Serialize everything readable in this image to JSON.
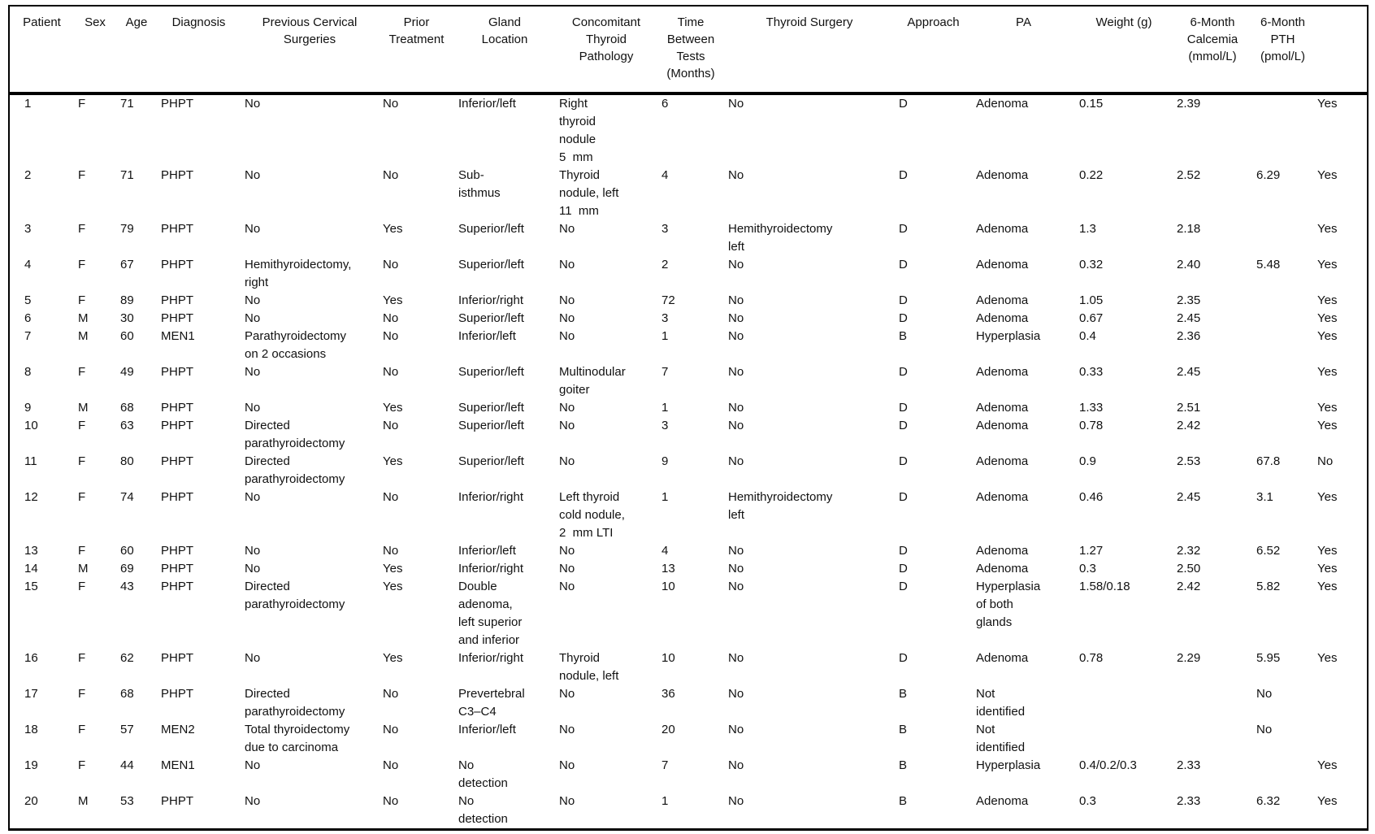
{
  "table": {
    "columns": [
      {
        "key": "patient",
        "label": "Patient"
      },
      {
        "key": "sex",
        "label": "Sex"
      },
      {
        "key": "age",
        "label": "Age"
      },
      {
        "key": "diagnosis",
        "label": "Diagnosis"
      },
      {
        "key": "previous_cervical_surgeries",
        "label": "Previous Cervical\nSurgeries"
      },
      {
        "key": "prior_treatment",
        "label": "Prior\nTreatment"
      },
      {
        "key": "gland_location",
        "label": "Gland\nLocation"
      },
      {
        "key": "concomitant_thyroid_pathology",
        "label": "Concomitant\nThyroid\nPathology"
      },
      {
        "key": "time_between_tests_months",
        "label": "Time\nBetween\nTests\n(Months)"
      },
      {
        "key": "thyroid_surgery",
        "label": "Thyroid Surgery"
      },
      {
        "key": "approach",
        "label": "Approach"
      },
      {
        "key": "pa",
        "label": "PA"
      },
      {
        "key": "weight_g",
        "label": "Weight (g)"
      },
      {
        "key": "calcemia_6month",
        "label": "6-Month\nCalcemia\n(mmol/L)"
      },
      {
        "key": "pth_6month",
        "label": "6-Month\nPTH\n(pmol/L)"
      },
      {
        "key": "last_column",
        "label": ""
      }
    ],
    "rows": [
      {
        "patient": "1",
        "sex": "F",
        "age": "71",
        "diagnosis": "PHPT",
        "previous_cervical_surgeries": "No",
        "prior_treatment": "No",
        "gland_location": "Inferior/left",
        "concomitant_thyroid_pathology": "Right\nthyroid\nnodule\n5  mm",
        "time_between_tests_months": "6",
        "thyroid_surgery": "No",
        "approach": "D",
        "pa": "Adenoma",
        "weight_g": "0.15",
        "calcemia_6month": "2.39",
        "pth_6month": "",
        "last_column": "Yes"
      },
      {
        "patient": "2",
        "sex": "F",
        "age": "71",
        "diagnosis": "PHPT",
        "previous_cervical_surgeries": "No",
        "prior_treatment": "No",
        "gland_location": "Sub-\nisthmus",
        "concomitant_thyroid_pathology": "Thyroid\nnodule, left\n11  mm",
        "time_between_tests_months": "4",
        "thyroid_surgery": "No",
        "approach": "D",
        "pa": "Adenoma",
        "weight_g": "0.22",
        "calcemia_6month": "2.52",
        "pth_6month": "6.29",
        "last_column": "Yes"
      },
      {
        "patient": "3",
        "sex": "F",
        "age": "79",
        "diagnosis": "PHPT",
        "previous_cervical_surgeries": "No",
        "prior_treatment": "Yes",
        "gland_location": "Superior/left",
        "concomitant_thyroid_pathology": "No",
        "time_between_tests_months": "3",
        "thyroid_surgery": "Hemithyroidectomy\nleft",
        "approach": "D",
        "pa": "Adenoma",
        "weight_g": "1.3",
        "calcemia_6month": "2.18",
        "pth_6month": "",
        "last_column": "Yes"
      },
      {
        "patient": "4",
        "sex": "F",
        "age": "67",
        "diagnosis": "PHPT",
        "previous_cervical_surgeries": "Hemithyroidectomy,\nright",
        "prior_treatment": "No",
        "gland_location": "Superior/left",
        "concomitant_thyroid_pathology": "No",
        "time_between_tests_months": "2",
        "thyroid_surgery": "No",
        "approach": "D",
        "pa": "Adenoma",
        "weight_g": "0.32",
        "calcemia_6month": "2.40",
        "pth_6month": "5.48",
        "last_column": "Yes"
      },
      {
        "patient": "5",
        "sex": "F",
        "age": "89",
        "diagnosis": "PHPT",
        "previous_cervical_surgeries": "No",
        "prior_treatment": "Yes",
        "gland_location": "Inferior/right",
        "concomitant_thyroid_pathology": "No",
        "time_between_tests_months": "72",
        "thyroid_surgery": "No",
        "approach": "D",
        "pa": "Adenoma",
        "weight_g": "1.05",
        "calcemia_6month": "2.35",
        "pth_6month": "",
        "last_column": "Yes"
      },
      {
        "patient": "6",
        "sex": "M",
        "age": "30",
        "diagnosis": "PHPT",
        "previous_cervical_surgeries": "No",
        "prior_treatment": "No",
        "gland_location": "Superior/left",
        "concomitant_thyroid_pathology": "No",
        "time_between_tests_months": "3",
        "thyroid_surgery": "No",
        "approach": "D",
        "pa": "Adenoma",
        "weight_g": "0.67",
        "calcemia_6month": "2.45",
        "pth_6month": "",
        "last_column": "Yes"
      },
      {
        "patient": "7",
        "sex": "M",
        "age": "60",
        "diagnosis": "MEN1",
        "previous_cervical_surgeries": "Parathyroidectomy\non 2 occasions",
        "prior_treatment": "No",
        "gland_location": "Inferior/left",
        "concomitant_thyroid_pathology": "No",
        "time_between_tests_months": "1",
        "thyroid_surgery": "No",
        "approach": "B",
        "pa": "Hyperplasia",
        "weight_g": "0.4",
        "calcemia_6month": "2.36",
        "pth_6month": "",
        "last_column": "Yes"
      },
      {
        "patient": "8",
        "sex": "F",
        "age": "49",
        "diagnosis": "PHPT",
        "previous_cervical_surgeries": "No",
        "prior_treatment": "No",
        "gland_location": "Superior/left",
        "concomitant_thyroid_pathology": "Multinodular\ngoiter",
        "time_between_tests_months": "7",
        "thyroid_surgery": "No",
        "approach": "D",
        "pa": "Adenoma",
        "weight_g": "0.33",
        "calcemia_6month": "2.45",
        "pth_6month": "",
        "last_column": "Yes"
      },
      {
        "patient": "9",
        "sex": "M",
        "age": "68",
        "diagnosis": "PHPT",
        "previous_cervical_surgeries": "No",
        "prior_treatment": "Yes",
        "gland_location": "Superior/left",
        "concomitant_thyroid_pathology": "No",
        "time_between_tests_months": "1",
        "thyroid_surgery": "No",
        "approach": "D",
        "pa": "Adenoma",
        "weight_g": "1.33",
        "calcemia_6month": "2.51",
        "pth_6month": "",
        "last_column": "Yes"
      },
      {
        "patient": "10",
        "sex": "F",
        "age": "63",
        "diagnosis": "PHPT",
        "previous_cervical_surgeries": "Directed\nparathyroidectomy",
        "prior_treatment": "No",
        "gland_location": "Superior/left",
        "concomitant_thyroid_pathology": "No",
        "time_between_tests_months": "3",
        "thyroid_surgery": "No",
        "approach": "D",
        "pa": "Adenoma",
        "weight_g": "0.78",
        "calcemia_6month": "2.42",
        "pth_6month": "",
        "last_column": "Yes"
      },
      {
        "patient": "11",
        "sex": "F",
        "age": "80",
        "diagnosis": "PHPT",
        "previous_cervical_surgeries": "Directed\nparathyroidectomy",
        "prior_treatment": "Yes",
        "gland_location": "Superior/left",
        "concomitant_thyroid_pathology": "No",
        "time_between_tests_months": "9",
        "thyroid_surgery": "No",
        "approach": "D",
        "pa": "Adenoma",
        "weight_g": "0.9",
        "calcemia_6month": "2.53",
        "pth_6month": "67.8",
        "last_column": "No"
      },
      {
        "patient": "12",
        "sex": "F",
        "age": "74",
        "diagnosis": "PHPT",
        "previous_cervical_surgeries": "No",
        "prior_treatment": "No",
        "gland_location": "Inferior/right",
        "concomitant_thyroid_pathology": "Left thyroid\ncold nodule,\n2  mm LTI",
        "time_between_tests_months": "1",
        "thyroid_surgery": "Hemithyroidectomy\nleft",
        "approach": "D",
        "pa": "Adenoma",
        "weight_g": "0.46",
        "calcemia_6month": "2.45",
        "pth_6month": "3.1",
        "last_column": "Yes"
      },
      {
        "patient": "13",
        "sex": "F",
        "age": "60",
        "diagnosis": "PHPT",
        "previous_cervical_surgeries": "No",
        "prior_treatment": "No",
        "gland_location": "Inferior/left",
        "concomitant_thyroid_pathology": "No",
        "time_between_tests_months": "4",
        "thyroid_surgery": "No",
        "approach": "D",
        "pa": "Adenoma",
        "weight_g": "1.27",
        "calcemia_6month": "2.32",
        "pth_6month": "6.52",
        "last_column": "Yes"
      },
      {
        "patient": "14",
        "sex": "M",
        "age": "69",
        "diagnosis": "PHPT",
        "previous_cervical_surgeries": "No",
        "prior_treatment": "Yes",
        "gland_location": "Inferior/right",
        "concomitant_thyroid_pathology": "No",
        "time_between_tests_months": "13",
        "thyroid_surgery": "No",
        "approach": "D",
        "pa": "Adenoma",
        "weight_g": "0.3",
        "calcemia_6month": "2.50",
        "pth_6month": "",
        "last_column": "Yes"
      },
      {
        "patient": "15",
        "sex": "F",
        "age": "43",
        "diagnosis": "PHPT",
        "previous_cervical_surgeries": "Directed\nparathyroidectomy",
        "prior_treatment": "Yes",
        "gland_location": "Double\nadenoma,\nleft superior\nand inferior",
        "concomitant_thyroid_pathology": "No",
        "time_between_tests_months": "10",
        "thyroid_surgery": "No",
        "approach": "D",
        "pa": "Hyperplasia\nof both\nglands",
        "weight_g": "1.58/0.18",
        "calcemia_6month": "2.42",
        "pth_6month": "5.82",
        "last_column": "Yes"
      },
      {
        "patient": "16",
        "sex": "F",
        "age": "62",
        "diagnosis": "PHPT",
        "previous_cervical_surgeries": "No",
        "prior_treatment": "Yes",
        "gland_location": "Inferior/right",
        "concomitant_thyroid_pathology": "Thyroid\nnodule, left",
        "time_between_tests_months": "10",
        "thyroid_surgery": "No",
        "approach": "D",
        "pa": "Adenoma",
        "weight_g": "0.78",
        "calcemia_6month": "2.29",
        "pth_6month": "5.95",
        "last_column": "Yes"
      },
      {
        "patient": "17",
        "sex": "F",
        "age": "68",
        "diagnosis": "PHPT",
        "previous_cervical_surgeries": "Directed\nparathyroidectomy",
        "prior_treatment": "No",
        "gland_location": "Prevertebral\nC3–C4",
        "concomitant_thyroid_pathology": "No",
        "time_between_tests_months": "36",
        "thyroid_surgery": "No",
        "approach": "B",
        "pa": "Not\nidentified",
        "weight_g": "",
        "calcemia_6month": "",
        "pth_6month": "No",
        "last_column": ""
      },
      {
        "patient": "18",
        "sex": "F",
        "age": "57",
        "diagnosis": "MEN2",
        "previous_cervical_surgeries": "Total thyroidectomy\ndue to carcinoma",
        "prior_treatment": "No",
        "gland_location": "Inferior/left",
        "concomitant_thyroid_pathology": "No",
        "time_between_tests_months": "20",
        "thyroid_surgery": "No",
        "approach": "B",
        "pa": "Not\nidentified",
        "weight_g": "",
        "calcemia_6month": "",
        "pth_6month": "No",
        "last_column": ""
      },
      {
        "patient": "19",
        "sex": "F",
        "age": "44",
        "diagnosis": "MEN1",
        "previous_cervical_surgeries": "No",
        "prior_treatment": "No",
        "gland_location": "No\ndetection",
        "concomitant_thyroid_pathology": "No",
        "time_between_tests_months": "7",
        "thyroid_surgery": "No",
        "approach": "B",
        "pa": "Hyperplasia",
        "weight_g": "0.4/0.2/0.3",
        "calcemia_6month": "2.33",
        "pth_6month": "",
        "last_column": "Yes"
      },
      {
        "patient": "20",
        "sex": "M",
        "age": "53",
        "diagnosis": "PHPT",
        "previous_cervical_surgeries": "No",
        "prior_treatment": "No",
        "gland_location": "No\ndetection",
        "concomitant_thyroid_pathology": "No",
        "time_between_tests_months": "1",
        "thyroid_surgery": "No",
        "approach": "B",
        "pa": "Adenoma",
        "weight_g": "0.3",
        "calcemia_6month": "2.33",
        "pth_6month": "6.32",
        "last_column": "Yes"
      }
    ],
    "colors": {
      "rule": "#000000",
      "text": "#111111",
      "background": "#ffffff"
    }
  }
}
